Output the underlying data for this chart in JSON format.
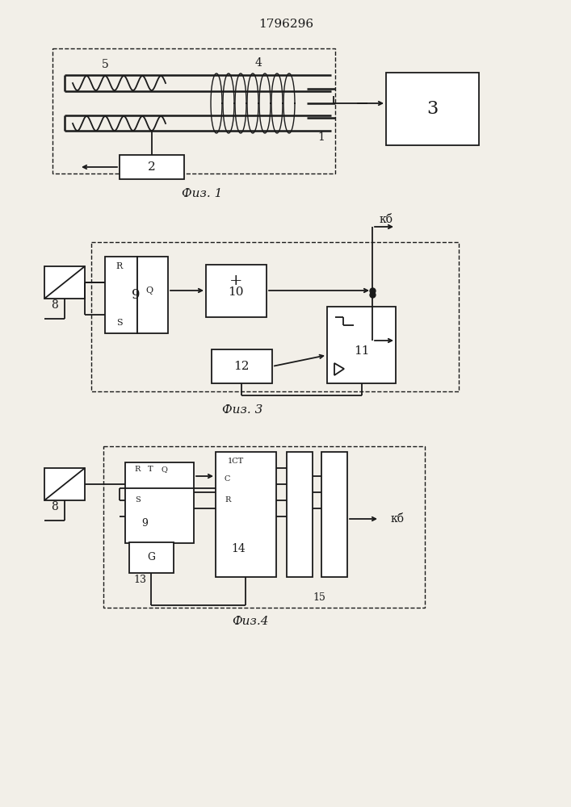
{
  "title": "1796296",
  "fig1_caption": "Физ. 1",
  "fig3_caption": "Физ. 3",
  "fig4_caption": "Физ.4",
  "bg_color": "#f2efe8",
  "line_color": "#1a1a1a",
  "label_1": "1",
  "label_2": "2",
  "label_3": "3",
  "label_4": "4",
  "label_5": "5",
  "label_8": "8",
  "label_9": "9",
  "label_10": "10",
  "label_11": "11",
  "label_12": "12",
  "label_13": "13",
  "label_14": "14",
  "label_15": "15",
  "label_kb": "кб"
}
